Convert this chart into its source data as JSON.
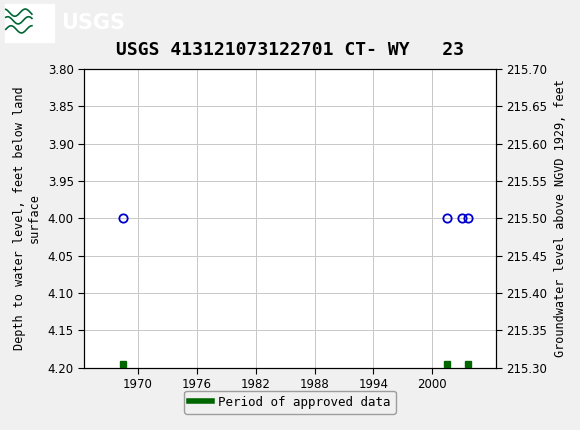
{
  "title": "USGS 413121073122701 CT- WY   23",
  "ylabel_left": "Depth to water level, feet below land\nsurface",
  "ylabel_right": "Groundwater level above NGVD 1929, feet",
  "ylim_left": [
    4.2,
    3.8
  ],
  "ylim_right": [
    215.3,
    215.7
  ],
  "xlim": [
    1964.5,
    2006.5
  ],
  "xticks": [
    1970,
    1976,
    1982,
    1988,
    1994,
    2000
  ],
  "yticks_left": [
    3.8,
    3.85,
    3.9,
    3.95,
    4.0,
    4.05,
    4.1,
    4.15,
    4.2
  ],
  "yticks_right": [
    215.7,
    215.65,
    215.6,
    215.55,
    215.5,
    215.45,
    215.4,
    215.35,
    215.3
  ],
  "circle_points_x": [
    1968.5,
    2001.5,
    2003.0,
    2003.7
  ],
  "circle_points_y": [
    4.0,
    4.0,
    4.0,
    4.0
  ],
  "square_points_x": [
    1968.5,
    2001.5,
    2003.7
  ],
  "square_points_y": [
    4.195,
    4.195,
    4.195
  ],
  "circle_color": "#0000cc",
  "square_color": "#006600",
  "legend_label": "Period of approved data",
  "header_color": "#006633",
  "background_color": "#f0f0f0",
  "plot_background": "#ffffff",
  "grid_color": "#c8c8c8",
  "title_fontsize": 13,
  "tick_fontsize": 8.5,
  "label_fontsize": 8.5
}
